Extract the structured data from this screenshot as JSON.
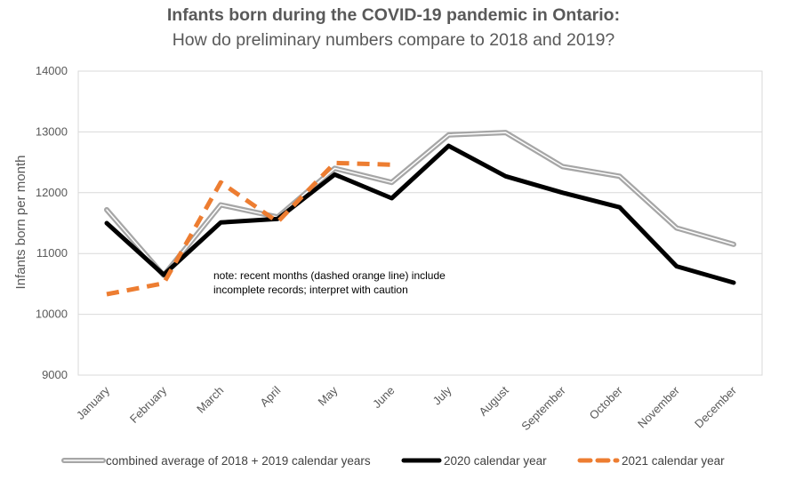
{
  "chart_data": {
    "type": "line",
    "title": "Infants born during the COVID-19 pandemic in Ontario:",
    "subtitle": "How do preliminary numbers compare to 2018 and 2019?",
    "ylabel": "Infants born per month",
    "xlabel": "",
    "ylim": [
      9000,
      14000
    ],
    "yticks": [
      9000,
      10000,
      11000,
      12000,
      13000,
      14000
    ],
    "grid": true,
    "legend_position": "bottom",
    "categories": [
      "January",
      "February",
      "March",
      "April",
      "May",
      "June",
      "July",
      "August",
      "September",
      "October",
      "November",
      "December"
    ],
    "series": [
      {
        "name": "combined average of 2018 + 2019 calendar years",
        "color": "#a6a6a6",
        "style": "double",
        "values": [
          11720,
          10640,
          11800,
          11600,
          12400,
          12170,
          12950,
          12990,
          12430,
          12270,
          11420,
          11150
        ]
      },
      {
        "name": "2020 calendar year",
        "color": "#000000",
        "style": "solid",
        "values": [
          11500,
          10650,
          11510,
          11570,
          12300,
          11910,
          12770,
          12270,
          12000,
          11760,
          10790,
          10520
        ]
      },
      {
        "name": "2021 calendar year",
        "color": "#ed7d31",
        "style": "dashed",
        "values": [
          10330,
          10510,
          12170,
          11520,
          12490,
          12460,
          null,
          null,
          null,
          null,
          null,
          null
        ]
      }
    ],
    "annotations": [
      {
        "text_lines": [
          "note: recent months (dashed orange line) include",
          "incomplete records; interpret with caution"
        ]
      }
    ]
  }
}
